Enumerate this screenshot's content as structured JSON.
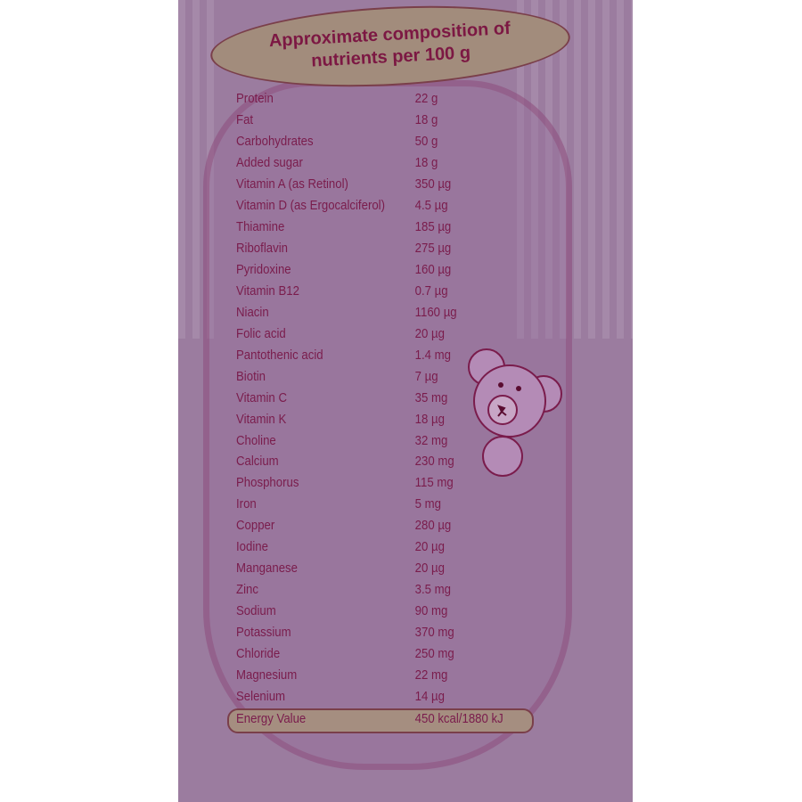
{
  "title": {
    "line1": "Approximate composition of",
    "line2": "nutrients per 100 g"
  },
  "nutrients": [
    {
      "name": "Protein",
      "value": "22 g"
    },
    {
      "name": "Fat",
      "value": "18 g"
    },
    {
      "name": "Carbohydrates",
      "value": "50 g"
    },
    {
      "name": "Added sugar",
      "value": "18 g"
    },
    {
      "name": "Vitamin A (as Retinol)",
      "value": "350 µg"
    },
    {
      "name": "Vitamin D (as Ergocalciferol)",
      "value": "4.5 µg"
    },
    {
      "name": "Thiamine",
      "value": "185 µg"
    },
    {
      "name": "Riboflavin",
      "value": "275 µg"
    },
    {
      "name": "Pyridoxine",
      "value": "160 µg"
    },
    {
      "name": "Vitamin B12",
      "value": "0.7 µg"
    },
    {
      "name": "Niacin",
      "value": "1160 µg"
    },
    {
      "name": "Folic acid",
      "value": "20 µg"
    },
    {
      "name": "Pantothenic acid",
      "value": "1.4 mg"
    },
    {
      "name": "Biotin",
      "value": "7 µg"
    },
    {
      "name": "Vitamin C",
      "value": "35 mg"
    },
    {
      "name": "Vitamin K",
      "value": "18 µg"
    },
    {
      "name": "Choline",
      "value": "32 mg"
    },
    {
      "name": "Calcium",
      "value": "230 mg"
    },
    {
      "name": "Phosphorus",
      "value": "115 mg"
    },
    {
      "name": "Iron",
      "value": "5 mg"
    },
    {
      "name": "Copper",
      "value": "280 µg"
    },
    {
      "name": "Iodine",
      "value": "20 µg"
    },
    {
      "name": "Manganese",
      "value": "20 µg"
    },
    {
      "name": "Zinc",
      "value": "3.5 mg"
    },
    {
      "name": "Sodium",
      "value": "90 mg"
    },
    {
      "name": "Potassium",
      "value": "370 mg"
    },
    {
      "name": "Chloride",
      "value": "250 mg"
    },
    {
      "name": "Magnesium",
      "value": "22 mg"
    },
    {
      "name": "Selenium",
      "value": "14 µg"
    }
  ],
  "energy": {
    "name": "Energy Value",
    "value": "450 kcal/1880 kJ"
  },
  "colors": {
    "label_bg": "#9b7c9f",
    "text": "#7a1c4c",
    "title_oval": "#a28c7c"
  }
}
